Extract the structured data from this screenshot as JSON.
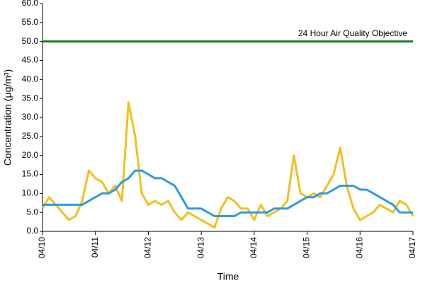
{
  "chart_data": {
    "type": "line",
    "xlabel": "Time",
    "ylabel": "Concentration (μg/m³)",
    "x": [
      0,
      3,
      6,
      9,
      12,
      15,
      18,
      21,
      24,
      27,
      30,
      33,
      36,
      39,
      42,
      45,
      48,
      51,
      54,
      57,
      60,
      63,
      66,
      69,
      72,
      75,
      78,
      81,
      84,
      87,
      90,
      93,
      96,
      99,
      102,
      105,
      108,
      111,
      114,
      117,
      120,
      123,
      126,
      129,
      132,
      135,
      138,
      141,
      144,
      147,
      150,
      153,
      156,
      159,
      162,
      165,
      168
    ],
    "series": [
      {
        "color": "#f0c020",
        "values": [
          6,
          9,
          7,
          5,
          3,
          4,
          8,
          16,
          14,
          13,
          10,
          12,
          8,
          34,
          25,
          10,
          7,
          8,
          7,
          8,
          5,
          3,
          5,
          4,
          3,
          2,
          1,
          6,
          9,
          8,
          6,
          6,
          3,
          7,
          4,
          5,
          6,
          8,
          20,
          10,
          9,
          10,
          9,
          12,
          15,
          22,
          12,
          6,
          3,
          4,
          5,
          7,
          6,
          5,
          8,
          7,
          4
        ]
      },
      {
        "color": "#2e9be0",
        "values": [
          7,
          7,
          7,
          7,
          7,
          7,
          7,
          8,
          9,
          10,
          10,
          11,
          13,
          14,
          16,
          16,
          15,
          14,
          14,
          13,
          12,
          9,
          6,
          6,
          6,
          5,
          4,
          4,
          4,
          4,
          5,
          5,
          5,
          5,
          5,
          6,
          6,
          6,
          7,
          8,
          9,
          9,
          10,
          10,
          11,
          12,
          12,
          12,
          11,
          11,
          10,
          9,
          8,
          7,
          5,
          5,
          5
        ]
      }
    ],
    "reference_line": {
      "value": 50,
      "label": "24 Hour Air Quality Objective",
      "color": "#1b7d1b"
    },
    "xlim": [
      0,
      168
    ],
    "xticks": [
      {
        "value": 0,
        "label": "04/10"
      },
      {
        "value": 24,
        "label": "04/11"
      },
      {
        "value": 48,
        "label": "04/12"
      },
      {
        "value": 72,
        "label": "04/13"
      },
      {
        "value": 96,
        "label": "04/14"
      },
      {
        "value": 120,
        "label": "04/15"
      },
      {
        "value": 144,
        "label": "04/16"
      },
      {
        "value": 168,
        "label": "04/17"
      }
    ],
    "ylim": [
      0,
      60
    ],
    "yticks": [
      {
        "value": 0,
        "label": "0.0"
      },
      {
        "value": 5,
        "label": "5.0"
      },
      {
        "value": 10,
        "label": "10.0"
      },
      {
        "value": 15,
        "label": "15.0"
      },
      {
        "value": 20,
        "label": "20.0"
      },
      {
        "value": 25,
        "label": "25.0"
      },
      {
        "value": 30,
        "label": "30.0"
      },
      {
        "value": 35,
        "label": "35.0"
      },
      {
        "value": 40,
        "label": "40.0"
      },
      {
        "value": 45,
        "label": "45.0"
      },
      {
        "value": 50,
        "label": "50.0"
      },
      {
        "value": 55,
        "label": "55.0"
      },
      {
        "value": 60,
        "label": "60.0"
      }
    ]
  }
}
